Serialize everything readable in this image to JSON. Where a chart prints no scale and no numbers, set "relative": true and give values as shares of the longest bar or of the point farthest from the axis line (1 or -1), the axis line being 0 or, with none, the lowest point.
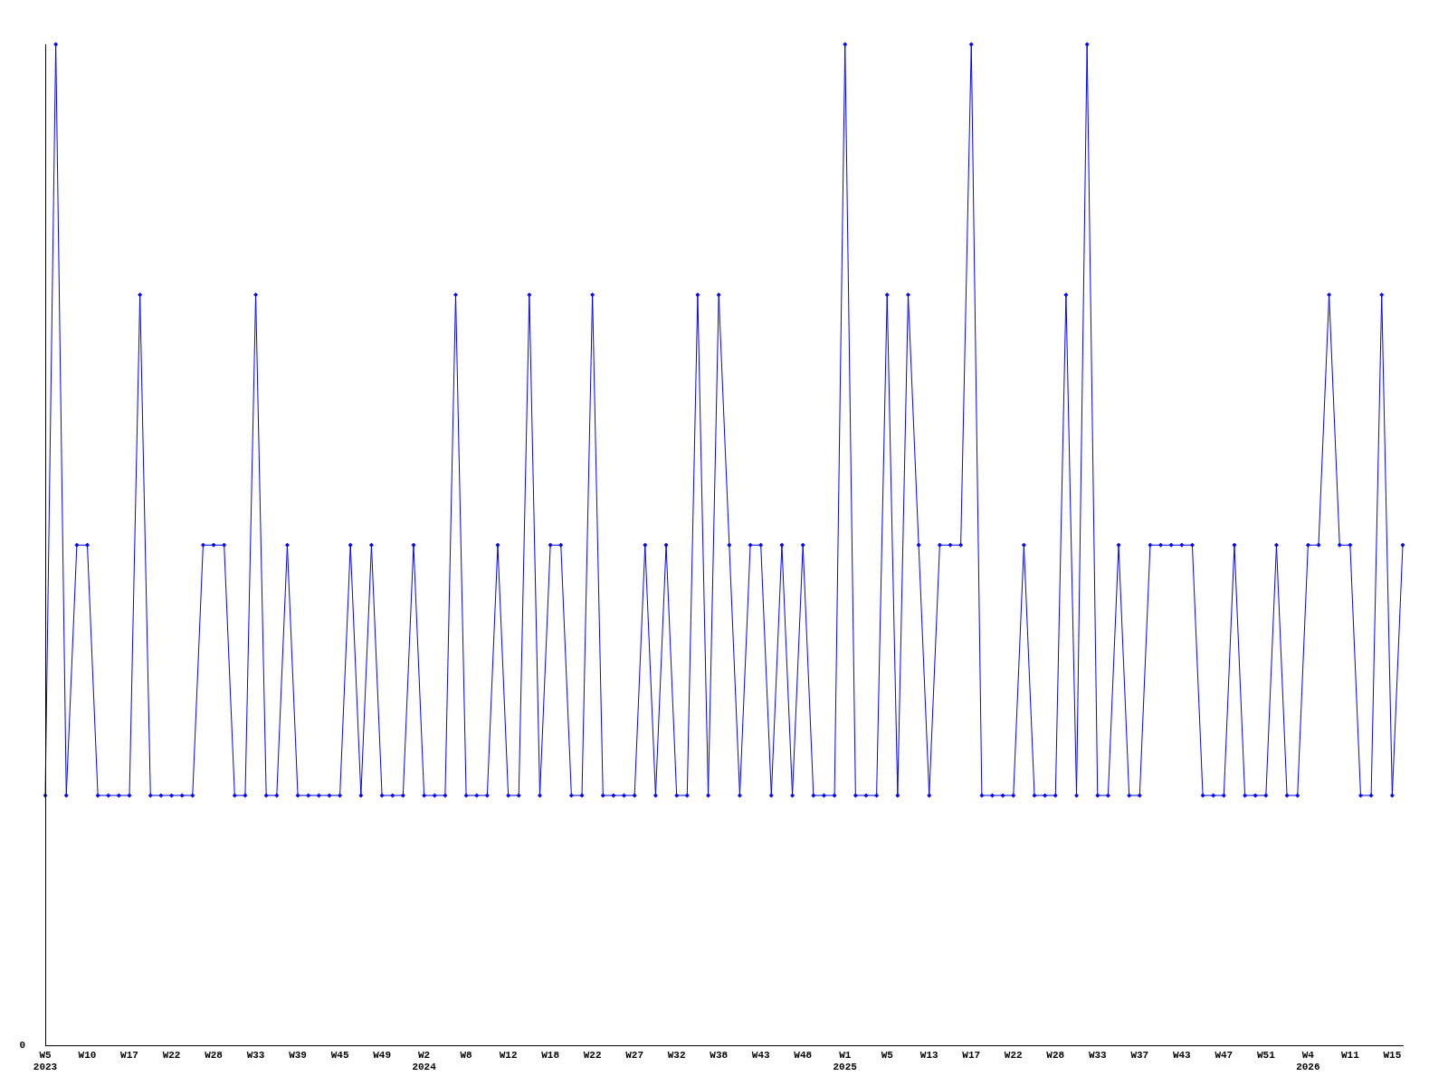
{
  "chart_data": {
    "type": "line",
    "relative": true,
    "marker": "diamond",
    "line_style": "solid",
    "categories": [
      "W5\n2023",
      null,
      null,
      null,
      "W10",
      null,
      null,
      null,
      "W17",
      null,
      null,
      null,
      "W22",
      null,
      null,
      null,
      "W28",
      null,
      null,
      null,
      "W33",
      null,
      null,
      null,
      "W39",
      null,
      null,
      null,
      "W45",
      null,
      null,
      null,
      "W49",
      null,
      null,
      null,
      "W2\n2024",
      null,
      null,
      null,
      "W8",
      null,
      null,
      null,
      "W12",
      null,
      null,
      null,
      "W18",
      null,
      null,
      null,
      "W22",
      null,
      null,
      null,
      "W27",
      null,
      null,
      null,
      "W32",
      null,
      null,
      null,
      "W38",
      null,
      null,
      null,
      "W43",
      null,
      null,
      null,
      "W48",
      null,
      null,
      null,
      "W1\n2025",
      null,
      null,
      null,
      "W5",
      null,
      null,
      null,
      "W13",
      null,
      null,
      null,
      "W17",
      null,
      null,
      null,
      "W22",
      null,
      null,
      null,
      "W28",
      null,
      null,
      null,
      "W33",
      null,
      null,
      null,
      "W37",
      null,
      null,
      null,
      "W43",
      null,
      null,
      null,
      "W47",
      null,
      null,
      null,
      "W51",
      null,
      null,
      null,
      "W4\n2026",
      null,
      null,
      null,
      "W11",
      null,
      null,
      null,
      "W15",
      null
    ],
    "series": [
      {
        "color": "#0000ff",
        "values": [
          0.25,
          1,
          0.25,
          0.5,
          0.5,
          0.25,
          0.25,
          0.25,
          0.25,
          0.75,
          0.25,
          0.25,
          0.25,
          0.25,
          0.25,
          0.5,
          0.5,
          0.5,
          0.25,
          0.25,
          0.75,
          0.25,
          0.25,
          0.5,
          0.25,
          0.25,
          0.25,
          0.25,
          0.25,
          0.5,
          0.25,
          0.5,
          0.25,
          0.25,
          0.25,
          0.5,
          0.25,
          0.25,
          0.25,
          0.75,
          0.25,
          0.25,
          0.25,
          0.5,
          0.25,
          0.25,
          0.75,
          0.25,
          0.5,
          0.5,
          0.25,
          0.25,
          0.75,
          0.25,
          0.25,
          0.25,
          0.25,
          0.5,
          0.25,
          0.5,
          0.25,
          0.25,
          0.75,
          0.25,
          0.75,
          0.5,
          0.25,
          0.5,
          0.5,
          0.25,
          0.5,
          0.25,
          0.5,
          0.25,
          0.25,
          0.25,
          1,
          0.25,
          0.25,
          0.25,
          0.75,
          0.25,
          0.75,
          0.5,
          0.25,
          0.5,
          0.5,
          0.5,
          1,
          0.25,
          0.25,
          0.25,
          0.25,
          0.5,
          0.25,
          0.25,
          0.25,
          0.75,
          0.25,
          1,
          0.25,
          0.25,
          0.5,
          0.25,
          0.25,
          0.5,
          0.5,
          0.5,
          0.5,
          0.5,
          0.25,
          0.25,
          0.25,
          0.5,
          0.25,
          0.25,
          0.25,
          0.5,
          0.25,
          0.25,
          0.5,
          0.5,
          0.75,
          0.5,
          0.5,
          0.25,
          0.25,
          0.75,
          0.25,
          0.5
        ]
      }
    ],
    "annotations": [
      "0"
    ]
  }
}
